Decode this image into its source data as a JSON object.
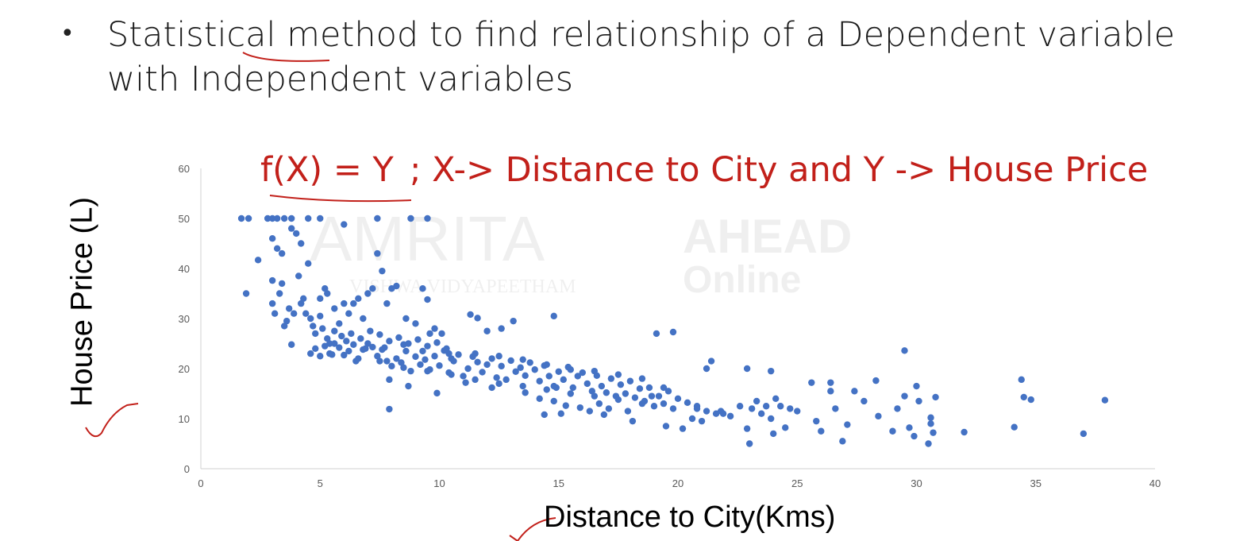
{
  "slide": {
    "bullet_line_1": "Statistical method to find relationship of a Dependent variable",
    "bullet_line_2": "with Independent variables",
    "formula_lhs": "f(X) = Y",
    "formula_rhs": "; X-> Distance to City and Y -> House Price",
    "formula_color": "#c2201a",
    "watermark_1": "AMRITA",
    "watermark_2": "VISHWA VIDYAPEETHAM",
    "watermark_3": "AHEAD",
    "watermark_4": "Online"
  },
  "chart_data": {
    "type": "scatter",
    "xlabel": "Distance to City(Kms)",
    "ylabel": "House Price (L)",
    "xlim": [
      0,
      40
    ],
    "ylim": [
      0,
      60
    ],
    "xticks": [
      0,
      5,
      10,
      15,
      20,
      25,
      30,
      35,
      40
    ],
    "yticks": [
      0,
      10,
      20,
      30,
      40,
      50,
      60
    ],
    "grid": false,
    "marker_color": "#4472c4",
    "points": [
      [
        1.7,
        50
      ],
      [
        2.0,
        50
      ],
      [
        1.9,
        35
      ],
      [
        2.4,
        41.7
      ],
      [
        2.8,
        50
      ],
      [
        3.0,
        50
      ],
      [
        3.2,
        50
      ],
      [
        3.5,
        50
      ],
      [
        3.8,
        50
      ],
      [
        4.5,
        50
      ],
      [
        5.0,
        50
      ],
      [
        7.4,
        50
      ],
      [
        8.8,
        50
      ],
      [
        9.5,
        50
      ],
      [
        6.0,
        48.8
      ],
      [
        3.0,
        46
      ],
      [
        3.2,
        44
      ],
      [
        3.4,
        43
      ],
      [
        3.8,
        48
      ],
      [
        4.0,
        47
      ],
      [
        4.2,
        45
      ],
      [
        4.5,
        41
      ],
      [
        3.0,
        37.6
      ],
      [
        3.4,
        37
      ],
      [
        3.7,
        32
      ],
      [
        3.9,
        31
      ],
      [
        4.3,
        34
      ],
      [
        4.1,
        38.5
      ],
      [
        3.0,
        33
      ],
      [
        3.1,
        31
      ],
      [
        3.3,
        35
      ],
      [
        3.5,
        28.5
      ],
      [
        3.6,
        29.5
      ],
      [
        3.8,
        24.8
      ],
      [
        4.2,
        33
      ],
      [
        4.4,
        31
      ],
      [
        4.6,
        30
      ],
      [
        4.7,
        28.5
      ],
      [
        4.8,
        27
      ],
      [
        5.0,
        34
      ],
      [
        5.0,
        30.5
      ],
      [
        5.1,
        28
      ],
      [
        5.2,
        36
      ],
      [
        5.3,
        35
      ],
      [
        5.4,
        25
      ],
      [
        5.6,
        32
      ],
      [
        5.8,
        29
      ],
      [
        6.0,
        33
      ],
      [
        6.2,
        31
      ],
      [
        6.4,
        33
      ],
      [
        6.6,
        34
      ],
      [
        6.8,
        30
      ],
      [
        7.0,
        35
      ],
      [
        7.2,
        36
      ],
      [
        7.4,
        43
      ],
      [
        7.6,
        39.5
      ],
      [
        7.8,
        33
      ],
      [
        8.0,
        36
      ],
      [
        8.2,
        36.5
      ],
      [
        8.6,
        30
      ],
      [
        9.0,
        29
      ],
      [
        9.3,
        36
      ],
      [
        9.5,
        33.8
      ],
      [
        9.6,
        27
      ],
      [
        9.8,
        28
      ],
      [
        10.1,
        27
      ],
      [
        10.4,
        23
      ],
      [
        11.3,
        30.8
      ],
      [
        11.6,
        30.1
      ],
      [
        12.0,
        27.5
      ],
      [
        12.6,
        28
      ],
      [
        13.1,
        29.5
      ],
      [
        14.8,
        30.5
      ],
      [
        4.6,
        23
      ],
      [
        4.8,
        24
      ],
      [
        5.0,
        22.5
      ],
      [
        5.2,
        24.5
      ],
      [
        5.4,
        23
      ],
      [
        5.6,
        25
      ],
      [
        5.8,
        24.2
      ],
      [
        6.0,
        22.7
      ],
      [
        6.2,
        23.5
      ],
      [
        6.4,
        24.8
      ],
      [
        6.6,
        22
      ],
      [
        6.8,
        23.8
      ],
      [
        7.0,
        25
      ],
      [
        7.2,
        24.3
      ],
      [
        7.4,
        22.5
      ],
      [
        7.6,
        23.8
      ],
      [
        7.8,
        21.5
      ],
      [
        8.0,
        20.5
      ],
      [
        8.2,
        22
      ],
      [
        8.4,
        21.2
      ],
      [
        8.6,
        23.5
      ],
      [
        8.8,
        19.5
      ],
      [
        9.0,
        22.4
      ],
      [
        9.2,
        20.8
      ],
      [
        9.4,
        21.8
      ],
      [
        9.6,
        19.8
      ],
      [
        9.8,
        22.5
      ],
      [
        10.0,
        20.6
      ],
      [
        10.2,
        23.6
      ],
      [
        10.4,
        19.2
      ],
      [
        10.6,
        21.5
      ],
      [
        10.8,
        22.8
      ],
      [
        11.0,
        18.5
      ],
      [
        11.2,
        20
      ],
      [
        11.4,
        22.4
      ],
      [
        11.6,
        21.3
      ],
      [
        11.8,
        19.3
      ],
      [
        12.0,
        20.8
      ],
      [
        12.2,
        22
      ],
      [
        12.4,
        18.2
      ],
      [
        12.6,
        20.5
      ],
      [
        12.8,
        17.8
      ],
      [
        13.0,
        21.6
      ],
      [
        13.2,
        19.4
      ],
      [
        13.4,
        20.2
      ],
      [
        13.6,
        18.6
      ],
      [
        13.8,
        21.2
      ],
      [
        14.0,
        19.8
      ],
      [
        14.2,
        17.5
      ],
      [
        14.4,
        20.6
      ],
      [
        14.6,
        18.5
      ],
      [
        14.8,
        16.5
      ],
      [
        15.0,
        19.4
      ],
      [
        15.2,
        17.8
      ],
      [
        15.4,
        20.3
      ],
      [
        15.6,
        16.2
      ],
      [
        15.8,
        18.5
      ],
      [
        16.0,
        19.2
      ],
      [
        16.2,
        17.0
      ],
      [
        16.4,
        15.5
      ],
      [
        16.6,
        18.6
      ],
      [
        16.8,
        16.5
      ],
      [
        17.0,
        15.2
      ],
      [
        17.2,
        18.0
      ],
      [
        17.4,
        14.5
      ],
      [
        17.6,
        16.8
      ],
      [
        17.8,
        15.0
      ],
      [
        18.0,
        17.5
      ],
      [
        18.2,
        14.2
      ],
      [
        18.4,
        16.0
      ],
      [
        18.6,
        13.5
      ],
      [
        18.8,
        16.2
      ],
      [
        19.0,
        12.5
      ],
      [
        19.2,
        14.5
      ],
      [
        19.4,
        13.0
      ],
      [
        19.6,
        15.5
      ],
      [
        19.8,
        12.0
      ],
      [
        20.0,
        14.0
      ],
      [
        20.4,
        13.2
      ],
      [
        20.8,
        12.5
      ],
      [
        21.2,
        11.5
      ],
      [
        21.6,
        11.0
      ],
      [
        5.3,
        26
      ],
      [
        5.6,
        27.5
      ],
      [
        5.9,
        26.5
      ],
      [
        6.3,
        27
      ],
      [
        6.7,
        26
      ],
      [
        7.1,
        27.5
      ],
      [
        7.5,
        26.8
      ],
      [
        7.9,
        25.5
      ],
      [
        8.3,
        26.2
      ],
      [
        8.7,
        25
      ],
      [
        9.1,
        25.8
      ],
      [
        9.5,
        24.5
      ],
      [
        9.9,
        25.2
      ],
      [
        10.3,
        24
      ],
      [
        6.1,
        25.5
      ],
      [
        6.9,
        24
      ],
      [
        7.7,
        24.2
      ],
      [
        8.5,
        24.8
      ],
      [
        9.3,
        23.5
      ],
      [
        10.5,
        22
      ],
      [
        11.5,
        23
      ],
      [
        12.5,
        22.5
      ],
      [
        13.5,
        21.8
      ],
      [
        14.5,
        20.8
      ],
      [
        15.5,
        19.8
      ],
      [
        16.5,
        19.5
      ],
      [
        17.5,
        18.8
      ],
      [
        18.5,
        18.0
      ],
      [
        5.5,
        22.8
      ],
      [
        6.5,
        21.5
      ],
      [
        7.5,
        21.5
      ],
      [
        8.5,
        20.2
      ],
      [
        9.5,
        19.5
      ],
      [
        10.5,
        18.8
      ],
      [
        11.5,
        17.8
      ],
      [
        12.5,
        17.0
      ],
      [
        13.5,
        16.5
      ],
      [
        14.5,
        15.8
      ],
      [
        15.5,
        15.0
      ],
      [
        16.5,
        14.5
      ],
      [
        17.5,
        13.8
      ],
      [
        18.5,
        13.0
      ],
      [
        7.9,
        17.8
      ],
      [
        8.7,
        16.5
      ],
      [
        9.9,
        15.1
      ],
      [
        14.2,
        14.0
      ],
      [
        14.8,
        13.5
      ],
      [
        15.3,
        12.6
      ],
      [
        15.9,
        12.2
      ],
      [
        16.7,
        13.0
      ],
      [
        17.1,
        12.0
      ],
      [
        17.9,
        11.5
      ],
      [
        18.1,
        9.5
      ],
      [
        16.3,
        11.5
      ],
      [
        14.4,
        10.8
      ],
      [
        7.9,
        11.9
      ],
      [
        19.1,
        27.0
      ],
      [
        19.8,
        27.3
      ],
      [
        20.2,
        8.0
      ],
      [
        20.6,
        10.0
      ],
      [
        21.0,
        9.5
      ],
      [
        21.4,
        21.5
      ],
      [
        21.8,
        11.5
      ],
      [
        22.2,
        10.5
      ],
      [
        22.6,
        12.5
      ],
      [
        22.9,
        8.0
      ],
      [
        23.0,
        5.0
      ],
      [
        23.1,
        12.0
      ],
      [
        23.3,
        13.5
      ],
      [
        23.5,
        11.0
      ],
      [
        23.7,
        12.5
      ],
      [
        23.9,
        10.0
      ],
      [
        24.0,
        7.0
      ],
      [
        24.1,
        14.0
      ],
      [
        24.3,
        12.5
      ],
      [
        24.5,
        8.2
      ],
      [
        24.7,
        12.0
      ],
      [
        25.0,
        11.5
      ],
      [
        25.6,
        17.2
      ],
      [
        25.8,
        9.5
      ],
      [
        26.0,
        7.5
      ],
      [
        26.4,
        17.2
      ],
      [
        26.6,
        12.0
      ],
      [
        26.9,
        5.5
      ],
      [
        27.1,
        8.8
      ],
      [
        27.4,
        15.5
      ],
      [
        27.8,
        13.5
      ],
      [
        28.3,
        17.6
      ],
      [
        28.4,
        10.5
      ],
      [
        29.0,
        7.5
      ],
      [
        29.2,
        12.0
      ],
      [
        29.5,
        23.6
      ],
      [
        29.5,
        14.5
      ],
      [
        29.7,
        8.2
      ],
      [
        29.9,
        6.5
      ],
      [
        30.0,
        16.5
      ],
      [
        30.1,
        13.5
      ],
      [
        30.5,
        5.0
      ],
      [
        30.6,
        9.0
      ],
      [
        30.6,
        10.2
      ],
      [
        30.7,
        7.2
      ],
      [
        30.8,
        14.3
      ],
      [
        32.0,
        7.3
      ],
      [
        34.1,
        8.3
      ],
      [
        34.4,
        17.8
      ],
      [
        34.5,
        14.3
      ],
      [
        34.8,
        13.8
      ],
      [
        37.0,
        7.0
      ],
      [
        37.9,
        13.7
      ],
      [
        26.4,
        15.5
      ],
      [
        22.9,
        20.0
      ],
      [
        23.9,
        19.5
      ],
      [
        21.2,
        20.0
      ],
      [
        20.8,
        12.0
      ],
      [
        19.4,
        16.2
      ],
      [
        18.9,
        14.5
      ],
      [
        15.1,
        11.0
      ],
      [
        14.9,
        16.2
      ],
      [
        13.6,
        15.2
      ],
      [
        12.2,
        16.2
      ],
      [
        11.1,
        17.2
      ],
      [
        16.9,
        10.8
      ],
      [
        19.5,
        8.5
      ],
      [
        21.9,
        11.0
      ]
    ]
  }
}
